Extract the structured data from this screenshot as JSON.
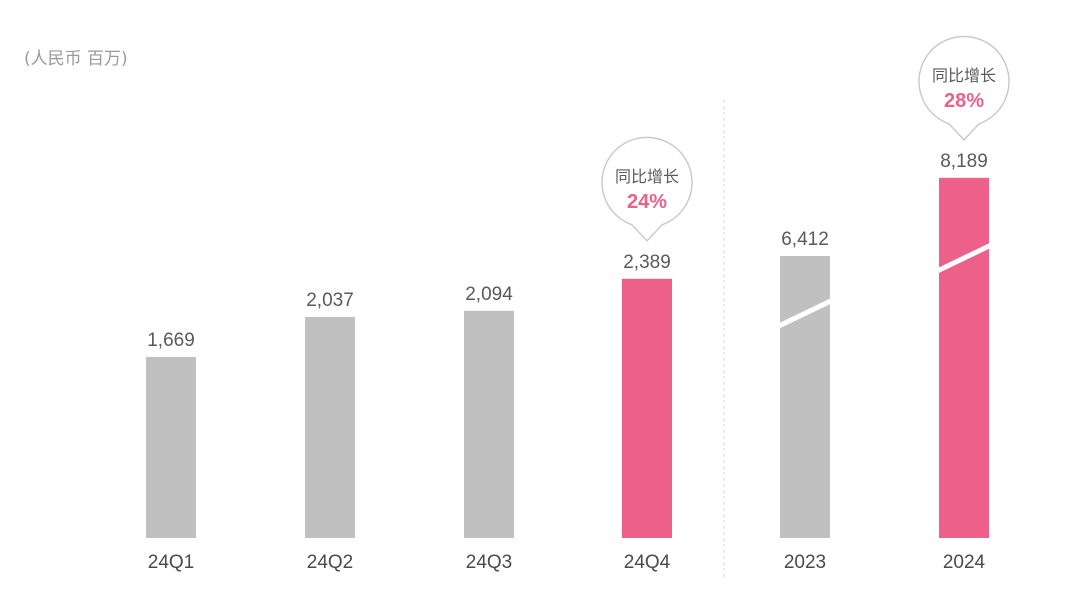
{
  "unit_label": "(人民币 百万)",
  "colors": {
    "gray": "#c0c0c0",
    "pink": "#ec6089",
    "bubble_border": "#c8c8c8",
    "divider": "#d6d6d6",
    "value_text": "#5a5a5a"
  },
  "chart_data": [
    {
      "type": "bar",
      "categories": [
        "24Q1",
        "24Q2",
        "24Q3",
        "24Q4"
      ],
      "values": [
        1669,
        2037,
        2094,
        2389
      ],
      "value_labels": [
        "1,669",
        "2,037",
        "2,094",
        "2,389"
      ],
      "highlight_index": 3,
      "callout": {
        "index": 3,
        "title": "同比增长",
        "value": "24%"
      }
    },
    {
      "type": "bar",
      "categories": [
        "2023",
        "2024"
      ],
      "values": [
        6412,
        8189
      ],
      "value_labels": [
        "6,412",
        "8,189"
      ],
      "highlight_index": 1,
      "axis_break": true,
      "callout": {
        "index": 1,
        "title": "同比增长",
        "value": "28%"
      }
    }
  ]
}
